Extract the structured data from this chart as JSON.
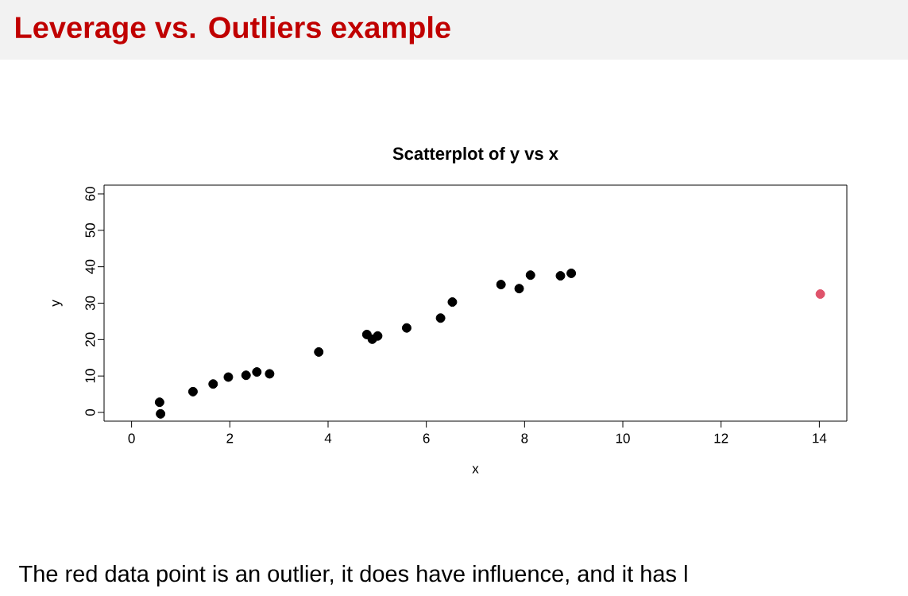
{
  "chart_data": {
    "type": "scatter",
    "title": "Leverage vs. Outliers example",
    "subtitle": "Scatterplot of y vs x",
    "xlabel": "x",
    "ylabel": "y",
    "annotations": [
      "The red data point is an outlier, it does have influence, and it has l"
    ],
    "series": [
      {
        "color": "#000000",
        "x": [
          0.57,
          0.59,
          1.25,
          1.66,
          1.97,
          2.33,
          2.55,
          2.81,
          3.81,
          4.79,
          4.9,
          5.01,
          5.6,
          6.29,
          6.53,
          7.52,
          7.89,
          8.12,
          8.73,
          8.95
        ],
        "values": [
          2.8,
          -0.4,
          5.7,
          7.8,
          9.7,
          10.2,
          11.1,
          10.6,
          16.6,
          21.4,
          20.1,
          21.0,
          23.2,
          25.9,
          30.3,
          35.1,
          34.0,
          37.7,
          37.5,
          38.2
        ]
      },
      {
        "color": "#df536b",
        "x": [
          14.02
        ],
        "values": [
          32.5
        ]
      }
    ],
    "xlim": [
      -0.56,
      14.56
    ],
    "ylim": [
      -2.4,
      62.4
    ],
    "xticks": [
      0,
      2,
      4,
      6,
      8,
      10,
      12,
      14
    ],
    "yticks": [
      0,
      10,
      20,
      30,
      40,
      50,
      60
    ],
    "marker": "circle",
    "grid": false
  }
}
